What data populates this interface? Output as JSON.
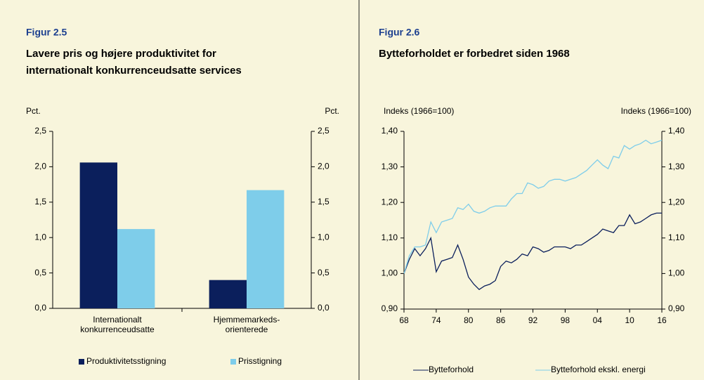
{
  "chart_data": [
    {
      "type": "bar",
      "figure": "Figur 2.5",
      "title": [
        "Lavere pris og højere produktivitet for",
        "internationalt konkurrenceudsatte services"
      ],
      "ylabel": "Pct.",
      "y2label": "Pct.",
      "categories": [
        [
          "Internationalt",
          "konkurrenceudsatte"
        ],
        [
          "Hjemmemarkeds-",
          "orienterede"
        ]
      ],
      "series": [
        {
          "name": "Produktivitetsstigning",
          "color": "#0b1f5c",
          "values": [
            2.06,
            0.4
          ]
        },
        {
          "name": "Prisstigning",
          "color": "#7ecdea",
          "values": [
            1.12,
            1.67
          ]
        }
      ],
      "ylim": [
        0,
        2.5
      ],
      "yticks": [
        {
          "value": 0,
          "label": "0,0"
        },
        {
          "value": 0.5,
          "label": "0,5"
        },
        {
          "value": 1,
          "label": "1,0"
        },
        {
          "value": 1.5,
          "label": "1,5"
        },
        {
          "value": 2,
          "label": "2,0"
        },
        {
          "value": 2.5,
          "label": "2,5"
        }
      ],
      "y2lim": [
        0,
        2.5
      ],
      "y2ticks": [
        {
          "value": 0,
          "label": "0,0"
        },
        {
          "value": 0.5,
          "label": "0,5"
        },
        {
          "value": 1,
          "label": "1,0"
        },
        {
          "value": 1.5,
          "label": "1,5"
        },
        {
          "value": 2,
          "label": "2,0"
        },
        {
          "value": 2.5,
          "label": "2,5"
        }
      ]
    },
    {
      "type": "line",
      "figure": "Figur 2.6",
      "title": [
        "Bytteforholdet er forbedret siden 1968"
      ],
      "ylabel": "Indeks (1966=100)",
      "y2label": "Indeks (1966=100)",
      "x": [
        1968,
        1969,
        1970,
        1971,
        1972,
        1973,
        1974,
        1975,
        1976,
        1977,
        1978,
        1979,
        1980,
        1981,
        1982,
        1983,
        1984,
        1985,
        1986,
        1987,
        1988,
        1989,
        1990,
        1991,
        1992,
        1993,
        1994,
        1995,
        1996,
        1997,
        1998,
        1999,
        2000,
        2001,
        2002,
        2003,
        2004,
        2005,
        2006,
        2007,
        2008,
        2009,
        2010,
        2011,
        2012,
        2013,
        2014,
        2015,
        2016
      ],
      "series": [
        {
          "name": "Bytteforhold",
          "color": "#0b1f5c",
          "values": [
            1.0,
            1.04,
            1.07,
            1.05,
            1.07,
            1.1,
            1.005,
            1.035,
            1.04,
            1.045,
            1.08,
            1.04,
            0.99,
            0.97,
            0.955,
            0.965,
            0.97,
            0.98,
            1.02,
            1.035,
            1.03,
            1.04,
            1.055,
            1.05,
            1.075,
            1.07,
            1.06,
            1.065,
            1.075,
            1.075,
            1.075,
            1.07,
            1.08,
            1.08,
            1.09,
            1.1,
            1.11,
            1.125,
            1.12,
            1.115,
            1.135,
            1.135,
            1.165,
            1.14,
            1.145,
            1.155,
            1.165,
            1.17,
            1.17
          ]
        },
        {
          "name": "Bytteforhold ekskl. energi",
          "color": "#7ecdea",
          "values": [
            1.0,
            1.05,
            1.075,
            1.075,
            1.08,
            1.145,
            1.115,
            1.145,
            1.15,
            1.155,
            1.185,
            1.18,
            1.195,
            1.175,
            1.17,
            1.175,
            1.185,
            1.19,
            1.19,
            1.19,
            1.21,
            1.225,
            1.225,
            1.255,
            1.25,
            1.24,
            1.245,
            1.26,
            1.265,
            1.265,
            1.26,
            1.265,
            1.27,
            1.28,
            1.29,
            1.305,
            1.32,
            1.305,
            1.295,
            1.33,
            1.325,
            1.36,
            1.35,
            1.36,
            1.365,
            1.375,
            1.365,
            1.37,
            1.375
          ]
        }
      ],
      "xlim": [
        1968,
        2016
      ],
      "xticks": [
        {
          "value": 1968,
          "label": "68"
        },
        {
          "value": 1974,
          "label": "74"
        },
        {
          "value": 1980,
          "label": "80"
        },
        {
          "value": 1986,
          "label": "86"
        },
        {
          "value": 1992,
          "label": "92"
        },
        {
          "value": 1998,
          "label": "98"
        },
        {
          "value": 2004,
          "label": "04"
        },
        {
          "value": 2010,
          "label": "10"
        },
        {
          "value": 2016,
          "label": "16"
        }
      ],
      "ylim": [
        0.9,
        1.4
      ],
      "yticks": [
        {
          "value": 0.9,
          "label": "0,90"
        },
        {
          "value": 1.0,
          "label": "1,00"
        },
        {
          "value": 1.1,
          "label": "1,10"
        },
        {
          "value": 1.2,
          "label": "1,20"
        },
        {
          "value": 1.3,
          "label": "1,30"
        },
        {
          "value": 1.4,
          "label": "1,40"
        }
      ],
      "y2lim": [
        0.9,
        1.4
      ],
      "y2ticks": [
        {
          "value": 0.9,
          "label": "0,90"
        },
        {
          "value": 1.0,
          "label": "1,00"
        },
        {
          "value": 1.1,
          "label": "1,10"
        },
        {
          "value": 1.2,
          "label": "1,20"
        },
        {
          "value": 1.3,
          "label": "1,30"
        },
        {
          "value": 1.4,
          "label": "1,40"
        }
      ]
    }
  ]
}
